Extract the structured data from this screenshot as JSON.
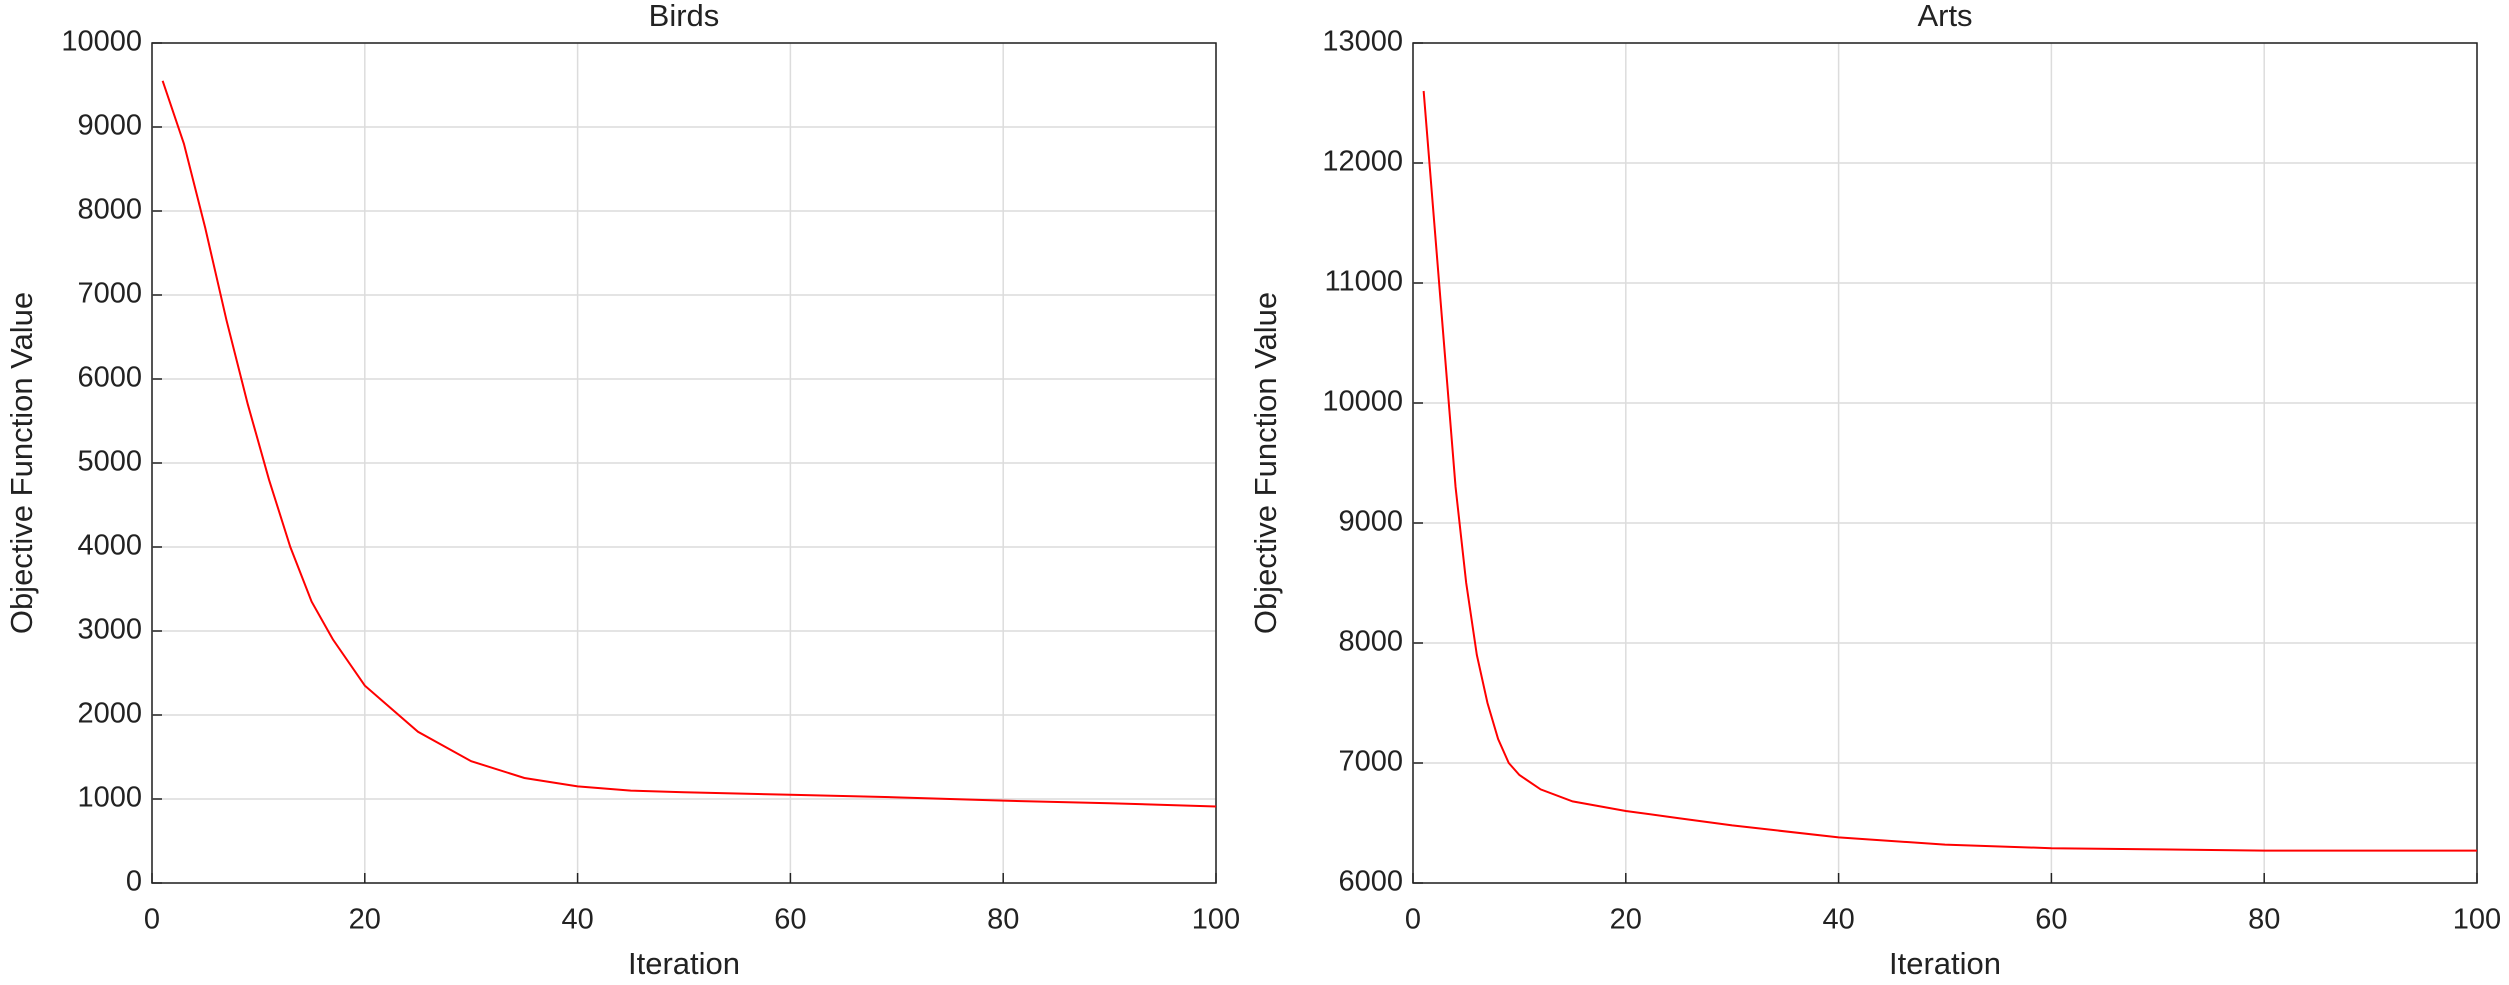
{
  "chart_data": [
    {
      "type": "line",
      "title": "Birds",
      "xlabel": "Iteration",
      "ylabel": "Objective Function Value",
      "xlim": [
        0,
        100
      ],
      "xticks": [
        0,
        20,
        40,
        60,
        80,
        100
      ],
      "ylim": [
        0,
        10000
      ],
      "yticks": [
        0,
        1000,
        2000,
        3000,
        4000,
        5000,
        6000,
        7000,
        8000,
        9000,
        10000
      ],
      "grid": true,
      "series": [
        {
          "color": "#ff0000",
          "x": [
            1,
            3,
            5,
            7,
            9,
            11,
            13,
            15,
            17,
            20,
            25,
            30,
            35,
            40,
            45,
            50,
            60,
            70,
            80,
            90,
            100
          ],
          "values": [
            9550,
            8800,
            7800,
            6700,
            5700,
            4800,
            4000,
            3350,
            2900,
            2350,
            1800,
            1450,
            1250,
            1150,
            1100,
            1080,
            1050,
            1020,
            980,
            950,
            910
          ]
        }
      ]
    },
    {
      "type": "line",
      "title": "Arts",
      "xlabel": "Iteration",
      "ylabel": "Objective Function Value",
      "xlim": [
        0,
        100
      ],
      "xticks": [
        0,
        20,
        40,
        60,
        80,
        100
      ],
      "ylim": [
        6000,
        13000
      ],
      "yticks": [
        6000,
        7000,
        8000,
        9000,
        10000,
        11000,
        12000,
        13000
      ],
      "grid": true,
      "series": [
        {
          "color": "#ff0000",
          "x": [
            1,
            2,
            3,
            4,
            5,
            6,
            7,
            8,
            9,
            10,
            12,
            15,
            20,
            25,
            30,
            40,
            50,
            60,
            70,
            80,
            90,
            100
          ],
          "values": [
            12600,
            11500,
            10400,
            9300,
            8500,
            7900,
            7500,
            7200,
            7000,
            6900,
            6780,
            6680,
            6600,
            6540,
            6480,
            6380,
            6320,
            6290,
            6280,
            6270,
            6270,
            6270
          ]
        }
      ]
    }
  ]
}
